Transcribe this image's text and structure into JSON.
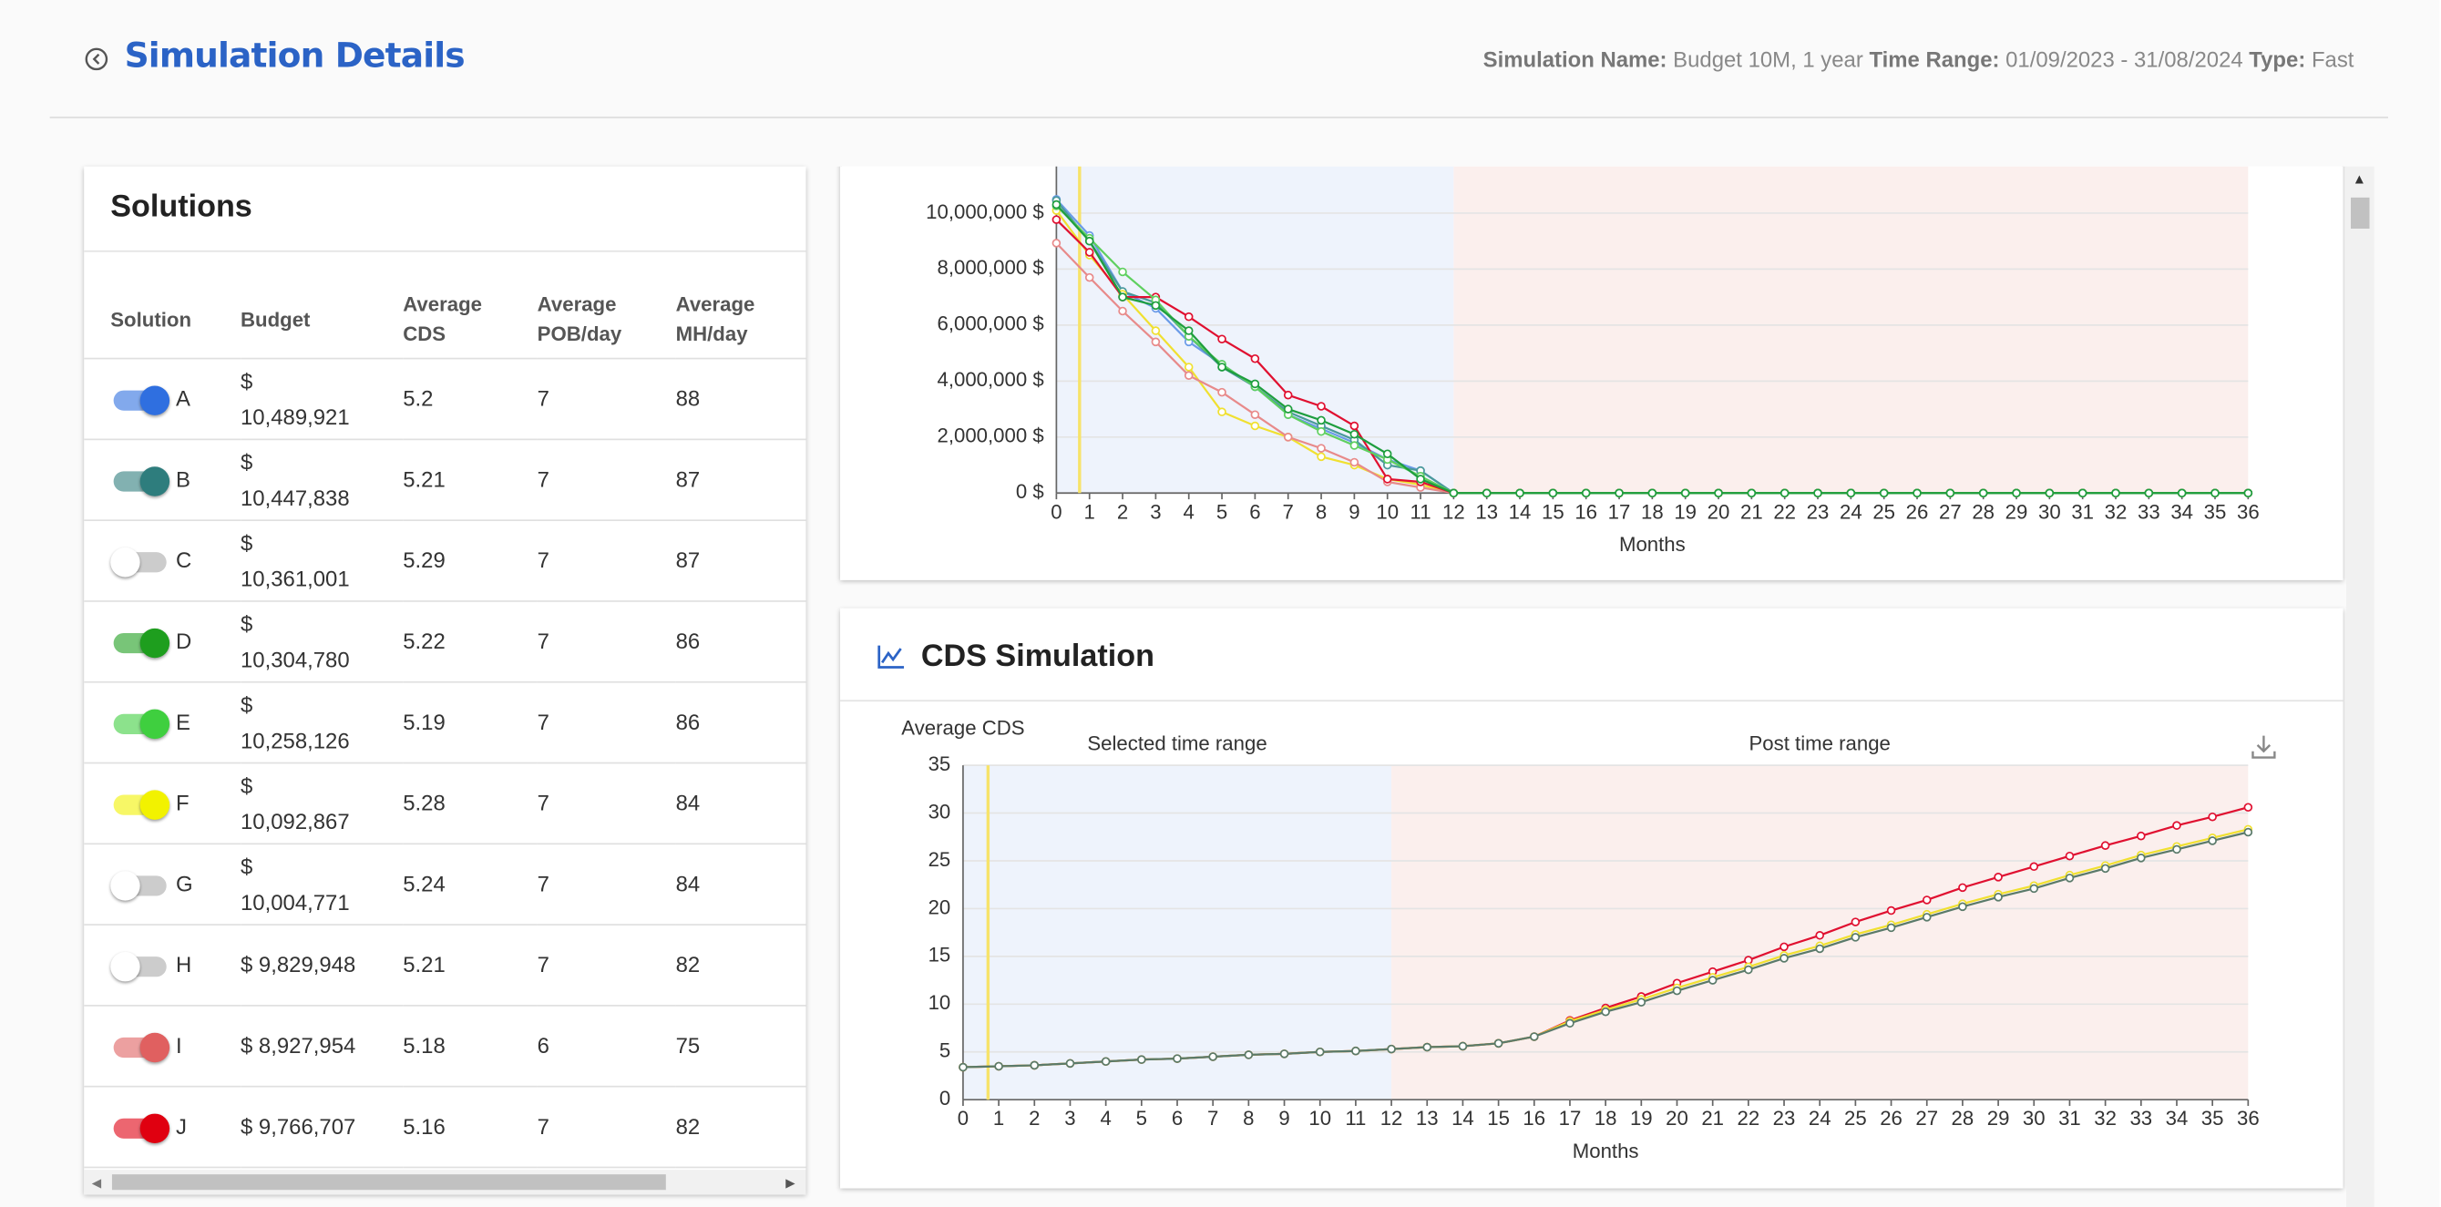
{
  "header": {
    "title": "Simulation Details",
    "meta": [
      {
        "label": "Simulation Name:",
        "value": "Budget 10M, 1 year"
      },
      {
        "label": "Time Range:",
        "value": "01/09/2023 - 31/08/2024"
      },
      {
        "label": "Type:",
        "value": "Fast"
      }
    ]
  },
  "solutions": {
    "title": "Solutions",
    "columns": [
      "Solution",
      "Budget",
      "Average CDS",
      "Average POB/day",
      "Average MH/day"
    ],
    "rows": [
      {
        "solution": "A",
        "budget": "$ 10,489,921",
        "cds": 5.2,
        "pob": 7,
        "mh": 88,
        "enabled": true,
        "color": "#2f6fe0"
      },
      {
        "solution": "B",
        "budget": "$ 10,447,838",
        "cds": 5.21,
        "pob": 7,
        "mh": 87,
        "enabled": true,
        "color": "#2e7d7d"
      },
      {
        "solution": "C",
        "budget": "$ 10,361,001",
        "cds": 5.29,
        "pob": 7,
        "mh": 87,
        "enabled": false,
        "color": "#cccccc"
      },
      {
        "solution": "D",
        "budget": "$ 10,304,780",
        "cds": 5.22,
        "pob": 7,
        "mh": 86,
        "enabled": true,
        "color": "#1e9e1e"
      },
      {
        "solution": "E",
        "budget": "$ 10,258,126",
        "cds": 5.19,
        "pob": 7,
        "mh": 86,
        "enabled": true,
        "color": "#3fcf3f"
      },
      {
        "solution": "F",
        "budget": "$ 10,092,867",
        "cds": 5.28,
        "pob": 7,
        "mh": 84,
        "enabled": true,
        "color": "#f2f200"
      },
      {
        "solution": "G",
        "budget": "$ 10,004,771",
        "cds": 5.24,
        "pob": 7,
        "mh": 84,
        "enabled": false,
        "color": "#cccccc"
      },
      {
        "solution": "H",
        "budget": "$ 9,829,948",
        "cds": 5.21,
        "pob": 7,
        "mh": 82,
        "enabled": false,
        "color": "#cccccc"
      },
      {
        "solution": "I",
        "budget": "$ 8,927,954",
        "cds": 5.18,
        "pob": 6,
        "mh": 75,
        "enabled": true,
        "color": "#e06060"
      },
      {
        "solution": "J",
        "budget": "$ 9,766,707",
        "cds": 5.16,
        "pob": 7,
        "mh": 82,
        "enabled": true,
        "color": "#e00010"
      }
    ]
  },
  "cds_card": {
    "title": "CDS Simulation"
  },
  "chart_data": [
    {
      "type": "line",
      "x_label": "Months",
      "x": [
        0,
        1,
        2,
        3,
        4,
        5,
        6,
        7,
        8,
        9,
        10,
        11,
        12,
        13,
        14,
        15,
        16,
        17,
        18,
        19,
        20,
        21,
        22,
        23,
        24,
        25,
        26,
        27,
        28,
        29,
        30,
        31,
        32,
        33,
        34,
        35,
        36
      ],
      "xlim": [
        0,
        36
      ],
      "xticks": [
        0,
        1,
        2,
        3,
        4,
        5,
        6,
        7,
        8,
        9,
        10,
        11,
        12,
        13,
        14,
        15,
        16,
        17,
        18,
        19,
        20,
        21,
        22,
        23,
        24,
        25,
        26,
        27,
        28,
        29,
        30,
        31,
        32,
        33,
        34,
        35,
        36
      ],
      "ylim": [
        0,
        12000000
      ],
      "yticks": [
        {
          "value": 0,
          "label": "0 $"
        },
        {
          "value": 2000000,
          "label": "2,000,000 $"
        },
        {
          "value": 4000000,
          "label": "4,000,000 $"
        },
        {
          "value": 6000000,
          "label": "6,000,000 $"
        },
        {
          "value": 8000000,
          "label": "8,000,000 $"
        },
        {
          "value": 10000000,
          "label": "10,000,000 $"
        }
      ],
      "grid": true,
      "marker_x": 0.7,
      "marker_color": "#f7e36a",
      "ranges": [
        {
          "from": 0,
          "to": 12,
          "color": "#eef3fc"
        },
        {
          "from": 12,
          "to": 36,
          "color": "#fbefed"
        }
      ],
      "series": [
        {
          "color": "#6a9be8",
          "values": [
            10489921,
            9200000,
            7200000,
            6600000,
            5400000,
            4600000,
            3800000,
            2800000,
            2300000,
            1800000,
            1200000,
            800000,
            0,
            0,
            0,
            0,
            0,
            0,
            0,
            0,
            0,
            0,
            0,
            0,
            0,
            0,
            0,
            0,
            0,
            0,
            0,
            0,
            0,
            0,
            0,
            0,
            0
          ]
        },
        {
          "color": "#4a9a9a",
          "values": [
            10447838,
            9000000,
            7200000,
            6800000,
            5600000,
            4500000,
            3800000,
            2900000,
            2400000,
            1900000,
            1000000,
            800000,
            0,
            0,
            0,
            0,
            0,
            0,
            0,
            0,
            0,
            0,
            0,
            0,
            0,
            0,
            0,
            0,
            0,
            0,
            0,
            0,
            0,
            0,
            0,
            0,
            0
          ]
        },
        {
          "color": "#f0e030",
          "values": [
            10092867,
            8500000,
            7100000,
            5800000,
            4500000,
            2900000,
            2400000,
            2000000,
            1300000,
            1000000,
            500000,
            300000,
            0,
            0,
            0,
            0,
            0,
            0,
            0,
            0,
            0,
            0,
            0,
            0,
            0,
            0,
            0,
            0,
            0,
            0,
            0,
            0,
            0,
            0,
            0,
            0,
            0
          ]
        },
        {
          "color": "#e88a8a",
          "values": [
            8927954,
            7700000,
            6500000,
            5400000,
            4200000,
            3600000,
            2800000,
            2000000,
            1600000,
            1100000,
            400000,
            200000,
            0,
            0,
            0,
            0,
            0,
            0,
            0,
            0,
            0,
            0,
            0,
            0,
            0,
            0,
            0,
            0,
            0,
            0,
            0,
            0,
            0,
            0,
            0,
            0,
            0
          ]
        },
        {
          "color": "#e01030",
          "values": [
            9766707,
            8600000,
            7000000,
            7000000,
            6300000,
            5500000,
            4800000,
            3500000,
            3100000,
            2400000,
            500000,
            400000,
            0,
            0,
            0,
            0,
            0,
            0,
            0,
            0,
            0,
            0,
            0,
            0,
            0,
            0,
            0,
            0,
            0,
            0,
            0,
            0,
            0,
            0,
            0,
            0,
            0
          ]
        },
        {
          "color": "#5fd05f",
          "values": [
            10258126,
            9100000,
            7900000,
            6900000,
            5600000,
            4600000,
            3800000,
            2800000,
            2200000,
            1700000,
            1200000,
            600000,
            0,
            0,
            0,
            0,
            0,
            0,
            0,
            0,
            0,
            0,
            0,
            0,
            0,
            0,
            0,
            0,
            0,
            0,
            0,
            0,
            0,
            0,
            0,
            0,
            0
          ]
        },
        {
          "color": "#1e9e3e",
          "values": [
            10304780,
            9000000,
            7000000,
            6700000,
            5800000,
            4500000,
            3900000,
            3000000,
            2600000,
            2100000,
            1400000,
            500000,
            0,
            0,
            0,
            0,
            0,
            0,
            0,
            0,
            0,
            0,
            0,
            0,
            0,
            0,
            0,
            0,
            0,
            0,
            0,
            0,
            0,
            0,
            0,
            0,
            0
          ]
        }
      ]
    },
    {
      "type": "line",
      "y_label": "Average CDS",
      "x_label": "Months",
      "x": [
        0,
        1,
        2,
        3,
        4,
        5,
        6,
        7,
        8,
        9,
        10,
        11,
        12,
        13,
        14,
        15,
        16,
        17,
        18,
        19,
        20,
        21,
        22,
        23,
        24,
        25,
        26,
        27,
        28,
        29,
        30,
        31,
        32,
        33,
        34,
        35,
        36
      ],
      "xlim": [
        0,
        36
      ],
      "xticks": [
        0,
        1,
        2,
        3,
        4,
        5,
        6,
        7,
        8,
        9,
        10,
        11,
        12,
        13,
        14,
        15,
        16,
        17,
        18,
        19,
        20,
        21,
        22,
        23,
        24,
        25,
        26,
        27,
        28,
        29,
        30,
        31,
        32,
        33,
        34,
        35,
        36
      ],
      "ylim": [
        0,
        35
      ],
      "yticks": [
        0,
        5,
        10,
        15,
        20,
        25,
        30,
        35
      ],
      "grid": true,
      "marker_x": 0.7,
      "marker_color": "#f7e36a",
      "ranges": [
        {
          "label": "Selected time range",
          "from": 0,
          "to": 12,
          "color": "#eef3fc"
        },
        {
          "label": "Post time range",
          "from": 12,
          "to": 36,
          "color": "#fbefed"
        }
      ],
      "series": [
        {
          "color": "#e01030",
          "values": [
            3.4,
            3.5,
            3.6,
            3.8,
            4.0,
            4.2,
            4.3,
            4.5,
            4.7,
            4.8,
            5.0,
            5.1,
            5.3,
            5.5,
            5.6,
            5.9,
            6.6,
            8.3,
            9.6,
            10.8,
            12.2,
            13.4,
            14.6,
            16.0,
            17.2,
            18.6,
            19.8,
            20.9,
            22.2,
            23.3,
            24.4,
            25.5,
            26.6,
            27.6,
            28.7,
            29.6,
            30.6
          ]
        },
        {
          "color": "#f0e030",
          "values": [
            3.4,
            3.5,
            3.6,
            3.8,
            4.0,
            4.2,
            4.3,
            4.5,
            4.7,
            4.8,
            5.0,
            5.1,
            5.3,
            5.5,
            5.6,
            5.9,
            6.6,
            8.2,
            9.4,
            10.5,
            11.7,
            12.8,
            13.9,
            15.1,
            16.1,
            17.3,
            18.3,
            19.4,
            20.5,
            21.5,
            22.4,
            23.5,
            24.5,
            25.6,
            26.5,
            27.4,
            28.3
          ]
        },
        {
          "color": "#5a7a6a",
          "values": [
            3.4,
            3.5,
            3.6,
            3.8,
            4.0,
            4.2,
            4.3,
            4.5,
            4.7,
            4.8,
            5.0,
            5.1,
            5.3,
            5.5,
            5.6,
            5.9,
            6.6,
            8.0,
            9.2,
            10.2,
            11.4,
            12.5,
            13.6,
            14.8,
            15.8,
            17.0,
            18.0,
            19.1,
            20.2,
            21.2,
            22.1,
            23.2,
            24.2,
            25.3,
            26.2,
            27.1,
            28.0
          ]
        }
      ]
    }
  ]
}
